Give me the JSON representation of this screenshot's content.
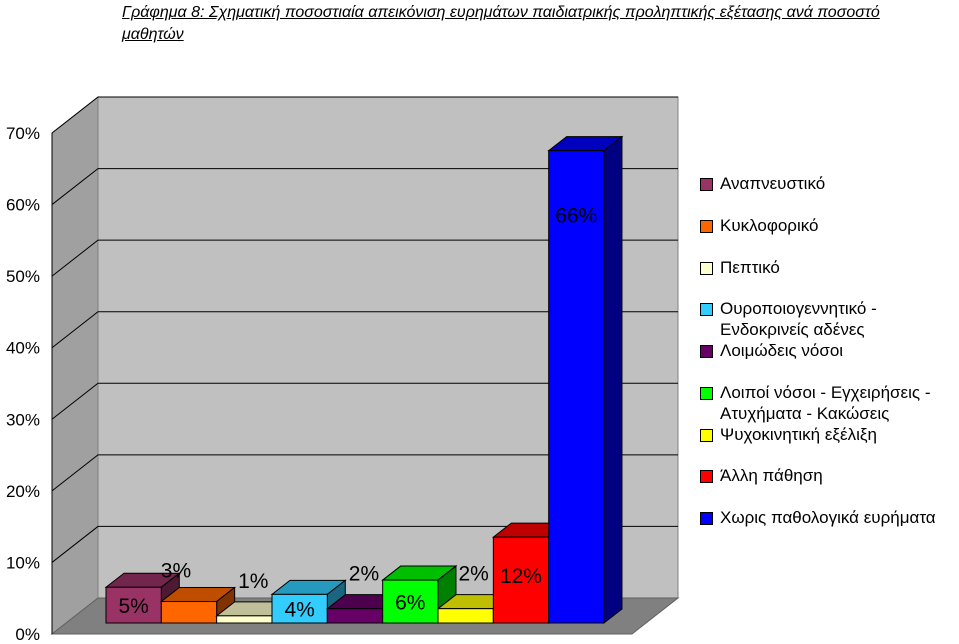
{
  "title": "Γράφημα 8: Σχηματική ποσοστιαία απεικόνιση ευρημάτων παιδιατρικής  προληπτικής εξέτασης ανά ποσοστό μαθητών",
  "chart_data": {
    "type": "bar",
    "title": "Γράφημα 8: Σχηματική ποσοστιαία απεικόνιση ευρημάτων παιδιατρικής  προληπτικής εξέτασης ανά ποσοστό μαθητών",
    "y_ticks": [
      "0%",
      "10%",
      "20%",
      "30%",
      "40%",
      "50%",
      "60%",
      "70%"
    ],
    "ylim": [
      0,
      70
    ],
    "grid": true,
    "legend_position": "right",
    "series": [
      {
        "name": "Αναπνευστικό",
        "value": 5,
        "label": "5%",
        "color": "#993366"
      },
      {
        "name": "Κυκλοφορικό",
        "value": 3,
        "label": "3%",
        "color": "#ff6600"
      },
      {
        "name": "Πεπτικό",
        "value": 1,
        "label": "1%",
        "color": "#ffffcc"
      },
      {
        "name": "Ουροποιογεννητικό -\nΕνδοκρινείς αδένες",
        "value": 4,
        "label": "4%",
        "color": "#33ccff"
      },
      {
        "name": "Λοιμώδεις νόσοι",
        "value": 2,
        "label": "2%",
        "color": "#660066"
      },
      {
        "name": "Λοιποί νόσοι - Εγχειρήσεις -\nΑτυχήματα - Κακώσεις",
        "value": 6,
        "label": "6%",
        "color": "#00ff00"
      },
      {
        "name": "Ψυχοκινητική εξέλιξη",
        "value": 2,
        "label": "2%",
        "color": "#ffff00"
      },
      {
        "name": "Άλλη πάθηση",
        "value": 12,
        "label": "12%",
        "color": "#ff0000"
      },
      {
        "name": "Χωρις παθολογικά ευρήματα",
        "value": 66,
        "label": "66%",
        "color": "#0000ff"
      }
    ]
  }
}
